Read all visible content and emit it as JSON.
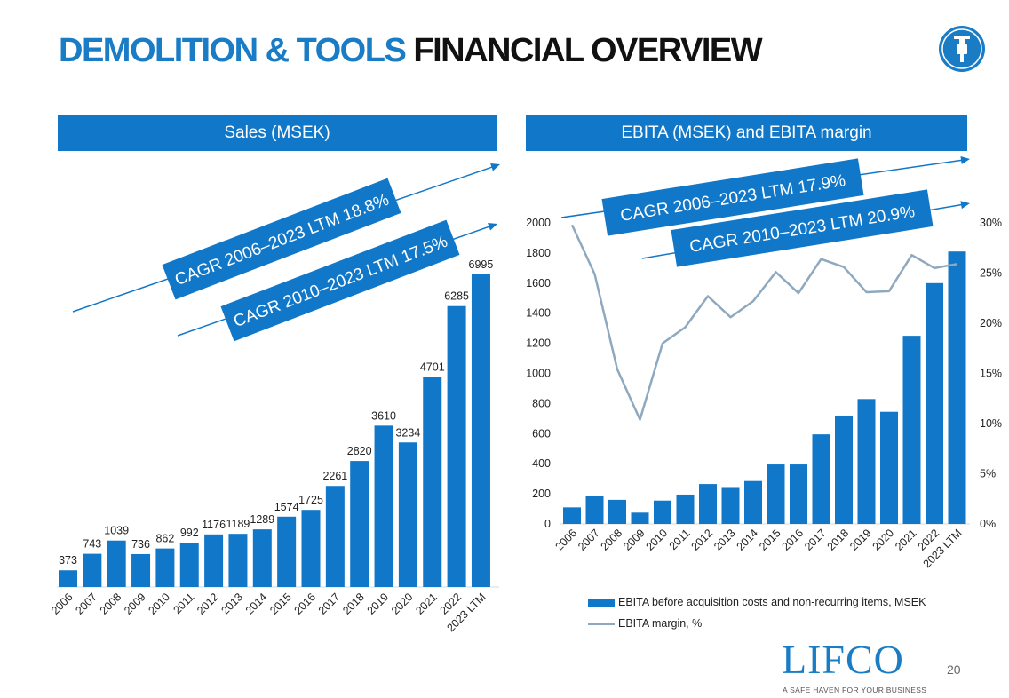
{
  "page": {
    "title_part1": "DEMOLITION & TOOLS",
    "title_part2": "FINANCIAL OVERVIEW",
    "page_number": "20",
    "brand": {
      "name": "LIFCO",
      "tagline": "A SAFE HAVEN FOR YOUR BUSINESS",
      "icon": "jackhammer-icon"
    },
    "colors": {
      "accent": "#1a7cc5",
      "bar": "#1177c8",
      "line": "#8ea9bf"
    }
  },
  "chart_data": [
    {
      "type": "bar",
      "title": "Sales (MSEK)",
      "categories": [
        "2006",
        "2007",
        "2008",
        "2009",
        "2010",
        "2011",
        "2012",
        "2013",
        "2014",
        "2015",
        "2016",
        "2017",
        "2018",
        "2019",
        "2020",
        "2021",
        "2022",
        "2023 LTM"
      ],
      "values": [
        373,
        743,
        1039,
        736,
        862,
        992,
        1176,
        1189,
        1289,
        1574,
        1725,
        2261,
        2820,
        3610,
        3234,
        4701,
        6285,
        6995
      ],
      "data_labels": [
        "373",
        "743",
        "1039",
        "736",
        "862",
        "992",
        "1176",
        "1189",
        "1289",
        "1574",
        "1725",
        "2261",
        "2820",
        "3610",
        "3234",
        "4701",
        "6285",
        "6995"
      ],
      "annotations": [
        "CAGR 2006–2023 LTM 18.8%",
        "CAGR 2010–2023 LTM 17.5%"
      ],
      "grid": false
    },
    {
      "type": "bar+line",
      "title": "EBITA (MSEK) and EBITA margin",
      "categories": [
        "2006",
        "2007",
        "2008",
        "2009",
        "2010",
        "2011",
        "2012",
        "2013",
        "2014",
        "2015",
        "2016",
        "2017",
        "2018",
        "2019",
        "2020",
        "2021",
        "2022",
        "2023 LTM"
      ],
      "series": [
        {
          "name": "EBITA before acquisition costs and non-recurring items, MSEK",
          "type": "bar",
          "axis": "left",
          "values": [
            110,
            185,
            160,
            75,
            155,
            195,
            265,
            245,
            285,
            395,
            395,
            595,
            720,
            830,
            745,
            1250,
            1600,
            1810
          ]
        },
        {
          "name": "EBITA margin, %",
          "type": "line",
          "axis": "right",
          "values": [
            29.8,
            24.9,
            15.4,
            10.4,
            18.0,
            19.6,
            22.7,
            20.6,
            22.2,
            25.1,
            23.0,
            26.4,
            25.6,
            23.1,
            23.2,
            26.8,
            25.5,
            25.9
          ]
        }
      ],
      "y_left": {
        "min": 0,
        "max": 2000,
        "ticks": [
          "0",
          "200",
          "400",
          "600",
          "800",
          "1000",
          "1200",
          "1400",
          "1600",
          "1800",
          "2000"
        ]
      },
      "y_right": {
        "min": 0,
        "max": 30,
        "ticks": [
          "0%",
          "5%",
          "10%",
          "15%",
          "20%",
          "25%",
          "30%"
        ]
      },
      "annotations": [
        "CAGR 2006–2023 LTM 17.9%",
        "CAGR 2010–2023 LTM 20.9%"
      ],
      "legend": "bottom",
      "grid": false
    }
  ]
}
